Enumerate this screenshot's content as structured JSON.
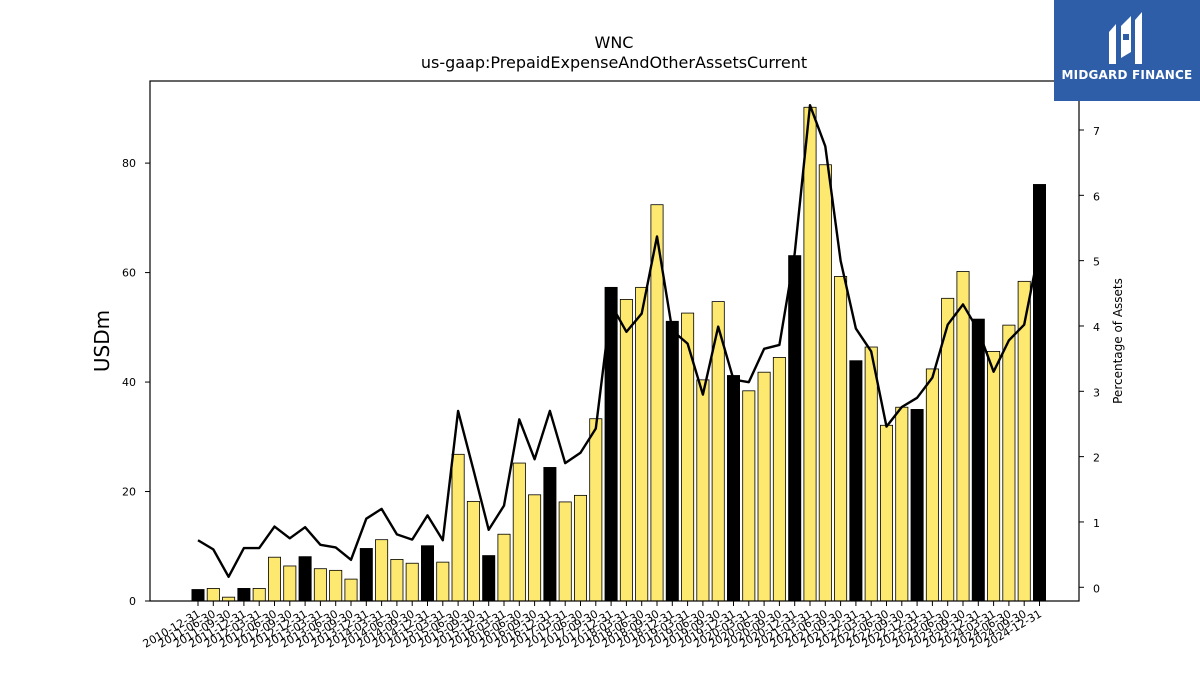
{
  "brand": {
    "name": "MIDGARD FINANCE",
    "color": "#2f5ea8",
    "icon": "midgard-logo-icon"
  },
  "chart_data": {
    "type": "bar",
    "title": "WNC",
    "subtitle": "us-gaap:PrepaidExpenseAndOtherAssetsCurrent",
    "ylabel": "USDm",
    "y2label": "Percentage of Assets",
    "ylim": [
      0,
      95
    ],
    "y2lim": [
      -0.21,
      7.75
    ],
    "yticks": [
      0,
      20,
      40,
      60,
      80
    ],
    "y2ticks": [
      0,
      1,
      2,
      3,
      4,
      5,
      6,
      7
    ],
    "grid": false,
    "colors": {
      "annual": "#000000",
      "quarter": "#fde96f",
      "line": "#000000"
    },
    "categories": [
      "2010-12-31",
      "2011-06-30",
      "2011-09-30",
      "2011-12-31",
      "2012-03-31",
      "2012-06-30",
      "2012-09-30",
      "2012-12-31",
      "2013-03-31",
      "2013-06-30",
      "2013-09-30",
      "2013-12-31",
      "2014-03-31",
      "2014-06-30",
      "2014-09-30",
      "2014-12-31",
      "2015-03-31",
      "2015-06-30",
      "2015-09-30",
      "2015-12-31",
      "2016-03-31",
      "2016-06-30",
      "2016-09-30",
      "2016-12-31",
      "2017-03-31",
      "2017-06-30",
      "2017-09-30",
      "2017-12-31",
      "2018-03-31",
      "2018-06-30",
      "2018-09-30",
      "2018-12-31",
      "2019-03-31",
      "2019-06-30",
      "2019-09-30",
      "2019-12-31",
      "2020-03-31",
      "2020-06-30",
      "2020-09-30",
      "2020-12-31",
      "2021-03-31",
      "2021-06-30",
      "2021-09-30",
      "2021-12-31",
      "2022-03-31",
      "2022-06-30",
      "2022-09-30",
      "2022-12-31",
      "2023-03-31",
      "2023-06-30",
      "2023-09-30",
      "2023-12-31",
      "2024-03-31",
      "2024-06-30",
      "2024-09-30",
      "2024-12-31"
    ],
    "series": [
      {
        "kind": "bar",
        "axis": "left",
        "values": [
          2.1,
          2.3,
          0.7,
          2.3,
          2.3,
          8.0,
          6.4,
          8.1,
          5.9,
          5.6,
          4.0,
          9.6,
          11.2,
          7.6,
          6.9,
          10.1,
          7.1,
          26.8,
          18.2,
          8.3,
          12.2,
          25.2,
          19.4,
          24.4,
          18.1,
          19.3,
          33.3,
          57.3,
          55.1,
          57.3,
          72.4,
          51.1,
          52.6,
          40.4,
          54.7,
          41.2,
          38.4,
          41.8,
          44.5,
          63.1,
          90.2,
          79.7,
          59.3,
          43.9,
          46.4,
          32.1,
          35.4,
          35.0,
          42.4,
          55.3,
          60.2,
          51.5,
          45.6,
          50.4,
          58.4,
          76.1
        ],
        "annual": [
          true,
          false,
          false,
          true,
          false,
          false,
          false,
          true,
          false,
          false,
          false,
          true,
          false,
          false,
          false,
          true,
          false,
          false,
          false,
          true,
          false,
          false,
          false,
          true,
          false,
          false,
          false,
          true,
          false,
          false,
          false,
          true,
          false,
          false,
          false,
          true,
          false,
          false,
          false,
          true,
          false,
          false,
          false,
          true,
          false,
          false,
          false,
          true,
          false,
          false,
          false,
          true,
          false,
          false,
          false,
          true
        ]
      },
      {
        "kind": "line",
        "axis": "right",
        "values": [
          0.72,
          0.58,
          0.16,
          0.6,
          0.6,
          0.93,
          0.75,
          0.92,
          0.65,
          0.61,
          0.42,
          1.05,
          1.2,
          0.81,
          0.73,
          1.1,
          0.72,
          2.7,
          1.8,
          0.88,
          1.25,
          2.57,
          1.96,
          2.7,
          1.9,
          2.06,
          2.43,
          4.33,
          3.91,
          4.19,
          5.37,
          3.93,
          3.73,
          2.95,
          3.99,
          3.18,
          3.14,
          3.65,
          3.71,
          5.11,
          7.38,
          6.75,
          5.0,
          3.96,
          3.61,
          2.46,
          2.76,
          2.9,
          3.21,
          4.02,
          4.33,
          3.93,
          3.3,
          3.78,
          4.02,
          5.2
        ]
      }
    ]
  }
}
